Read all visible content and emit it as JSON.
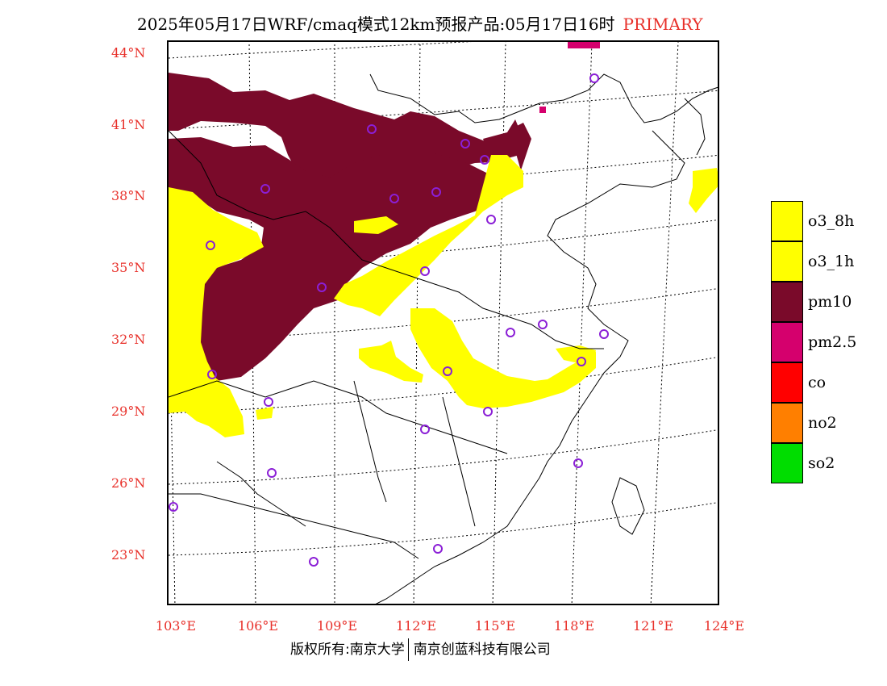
{
  "title": {
    "main": "2025年05月17日WRF/cmaq模式12km预报产品:05月17日16时",
    "tag": "PRIMARY"
  },
  "map": {
    "lat_labels": [
      "44°N",
      "41°N",
      "38°N",
      "35°N",
      "32°N",
      "29°N",
      "26°N",
      "23°N"
    ],
    "lon_labels": [
      "103°E",
      "106°E",
      "109°E",
      "112°E",
      "115°E",
      "118°E",
      "121°E",
      "124°E"
    ],
    "station_marker_color": "#8b1fd6",
    "boundary_color": "#000000"
  },
  "legend": {
    "items": [
      {
        "label": "o3_8h",
        "color": "#ffff00"
      },
      {
        "label": "o3_1h",
        "color": "#ffff00"
      },
      {
        "label": "pm10",
        "color": "#7a0a2a"
      },
      {
        "label": "pm2.5",
        "color": "#d5006d"
      },
      {
        "label": "co",
        "color": "#ff0000"
      },
      {
        "label": "no2",
        "color": "#ff7f00"
      },
      {
        "label": "so2",
        "color": "#00dd00"
      }
    ]
  },
  "footer": {
    "left": "版权所有:南京大学",
    "right": "南京创蓝科技有限公司"
  }
}
